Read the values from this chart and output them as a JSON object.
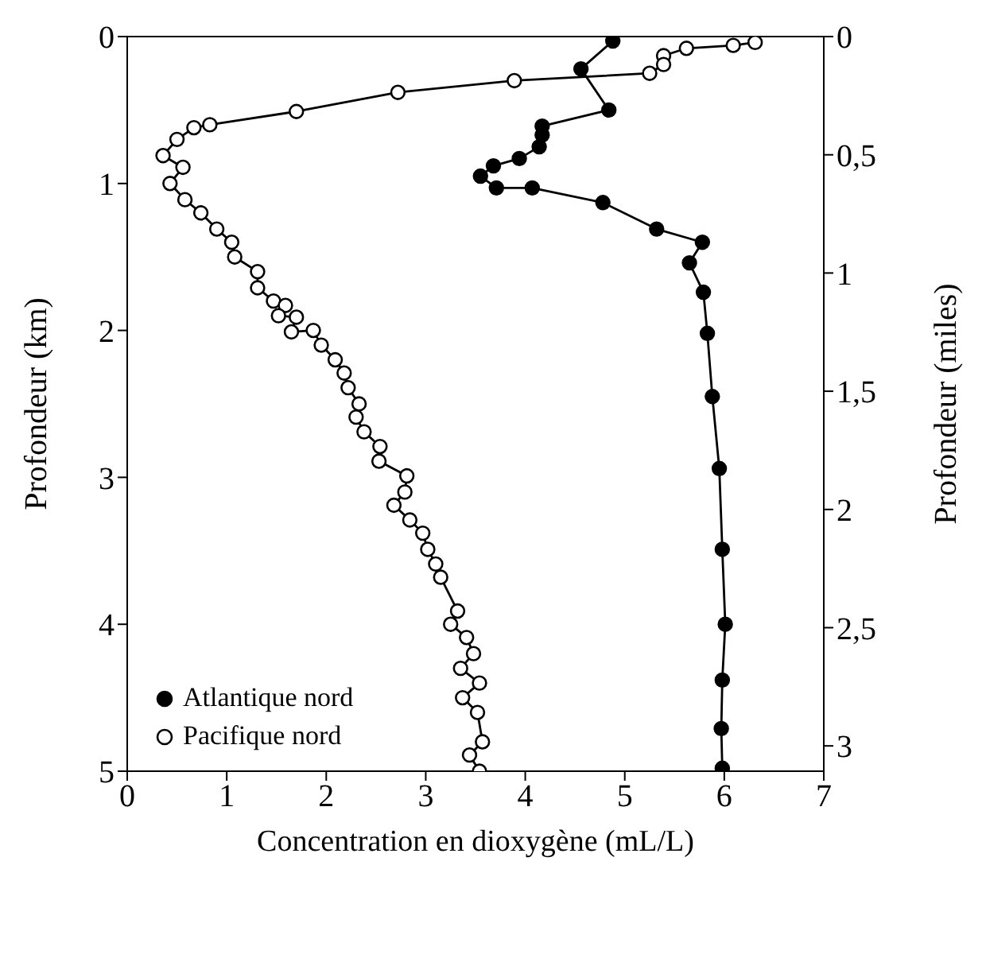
{
  "chart_data": {
    "type": "line",
    "xlabel": "Concentration en dioxygène (mL/L)",
    "ylabel": "Profondeur (km)",
    "y2label": "Profondeur (miles)",
    "xlim": [
      0,
      7
    ],
    "xticks": [
      0,
      1,
      2,
      3,
      4,
      5,
      6,
      7
    ],
    "ylim": [
      5,
      0
    ],
    "yticks": [
      0,
      1,
      2,
      3,
      4,
      5
    ],
    "y2lim": [
      3.107,
      0
    ],
    "y2ticks": [
      0,
      {
        "value": 0.5,
        "label": "0,5"
      },
      1,
      {
        "value": 1.5,
        "label": "1,5"
      },
      2,
      {
        "value": 2.5,
        "label": "2,5"
      },
      3
    ],
    "marker": "circle",
    "line_style": "solid",
    "legend": "bottom left",
    "series": [
      {
        "name": "Atlantique nord",
        "color": "#000000",
        "x": [
          4.88,
          4.56,
          4.84,
          4.17,
          4.17,
          4.14,
          3.94,
          3.68,
          3.55,
          3.71,
          4.07,
          4.78,
          5.32,
          5.78,
          5.65,
          5.79,
          5.83,
          5.88,
          5.95,
          5.98,
          6.01,
          5.98,
          5.97,
          5.98
        ],
        "values": [
          0.03,
          0.22,
          0.5,
          0.61,
          0.67,
          0.75,
          0.83,
          0.88,
          0.95,
          1.03,
          1.03,
          1.13,
          1.31,
          1.4,
          1.54,
          1.74,
          2.02,
          2.45,
          2.94,
          3.49,
          4.0,
          4.38,
          4.71,
          4.98
        ]
      },
      {
        "name": "Pacifique nord",
        "color": "#000000",
        "x": [
          6.31,
          6.09,
          5.62,
          5.39,
          5.39,
          5.25,
          3.89,
          2.72,
          1.7,
          0.83,
          0.67,
          0.5,
          0.36,
          0.56,
          0.43,
          0.58,
          0.74,
          0.9,
          1.05,
          1.08,
          1.31,
          1.31,
          1.47,
          1.59,
          1.52,
          1.7,
          1.65,
          1.87,
          1.95,
          2.09,
          2.18,
          2.22,
          2.33,
          2.3,
          2.38,
          2.54,
          2.53,
          2.81,
          2.79,
          2.68,
          2.84,
          2.97,
          3.02,
          3.1,
          3.15,
          3.32,
          3.25,
          3.41,
          3.48,
          3.35,
          3.54,
          3.37,
          3.52,
          3.57,
          3.44,
          3.54
        ],
        "values": [
          0.04,
          0.06,
          0.08,
          0.13,
          0.19,
          0.25,
          0.3,
          0.38,
          0.51,
          0.6,
          0.62,
          0.7,
          0.81,
          0.89,
          1.0,
          1.11,
          1.2,
          1.31,
          1.4,
          1.5,
          1.6,
          1.71,
          1.8,
          1.83,
          1.9,
          1.91,
          2.01,
          2.0,
          2.1,
          2.2,
          2.29,
          2.39,
          2.5,
          2.59,
          2.69,
          2.79,
          2.89,
          2.99,
          3.1,
          3.19,
          3.29,
          3.38,
          3.49,
          3.59,
          3.68,
          3.91,
          4.0,
          4.09,
          4.2,
          4.3,
          4.4,
          4.5,
          4.6,
          4.8,
          4.89,
          5.0
        ]
      }
    ]
  }
}
